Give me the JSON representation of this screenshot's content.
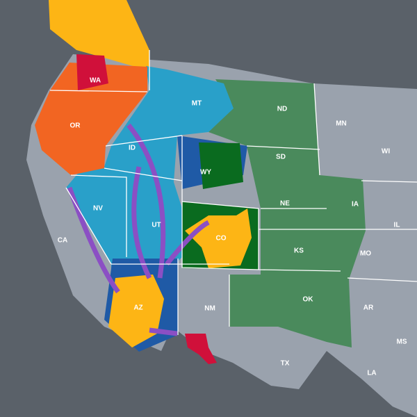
{
  "map": {
    "labels": [
      "WA",
      "OR",
      "MT",
      "ND",
      "MN",
      "ID",
      "SD",
      "WI",
      "WY",
      "NV",
      "NE",
      "IA",
      "CA",
      "UT",
      "IL",
      "CO",
      "KS",
      "MO",
      "AZ",
      "NM",
      "OK",
      "AR",
      "TX",
      "MS",
      "LA"
    ]
  }
}
